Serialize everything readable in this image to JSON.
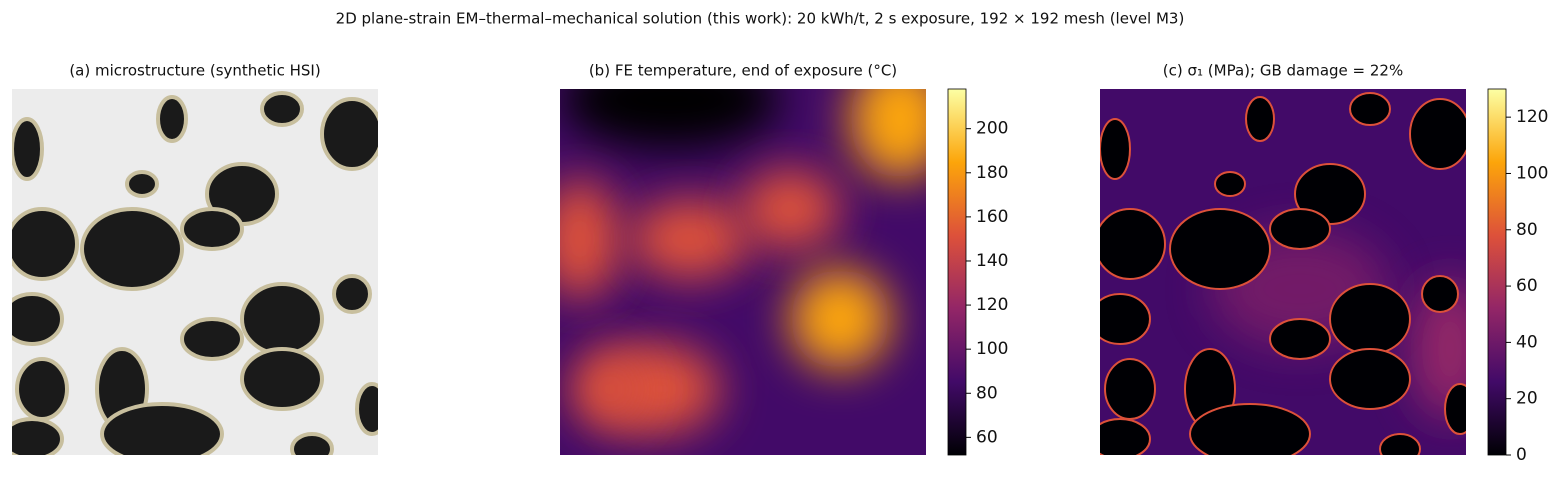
{
  "title": "2D plane-strain EM–thermal–mechanical solution (this work): 20 kWh/t, 2 s exposure, 192 × 192 mesh (level M3)",
  "chart_data": [
    {
      "type": "image",
      "title": "(a) microstructure (synthetic HSI)",
      "colors": [
        "#ececec",
        "#1a1a1a",
        "#c8bf9e"
      ]
    },
    {
      "type": "heatmap",
      "title": "(b) FE temperature, end of exposure (°C)",
      "colormap": [
        "#000004",
        "#420a68",
        "#932667",
        "#dd513a",
        "#fca50a",
        "#fcffa4"
      ],
      "clim": [
        52,
        218
      ],
      "cticks": [
        60,
        80,
        100,
        120,
        140,
        160,
        180,
        200
      ]
    },
    {
      "type": "heatmap",
      "title": "(c) σ₁ (MPa); GB damage = 22%",
      "colormap": [
        "#000004",
        "#420a68",
        "#932667",
        "#dd513a",
        "#fca50a",
        "#fcffa4"
      ],
      "clim": [
        0,
        130
      ],
      "cticks": [
        0,
        20,
        40,
        60,
        80,
        100,
        120
      ]
    }
  ]
}
